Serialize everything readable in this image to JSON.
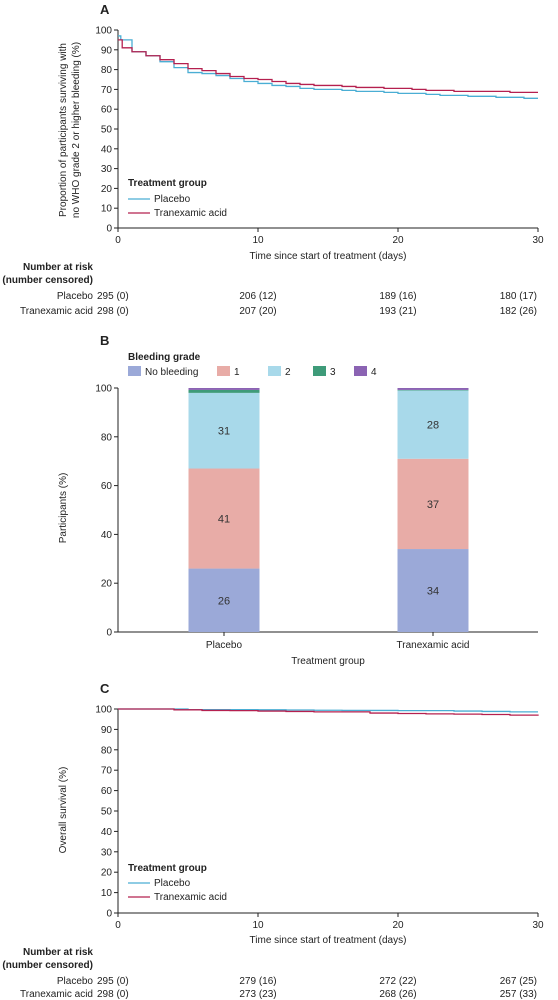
{
  "colors": {
    "placebo": "#4aaed4",
    "tranexamic": "#b5204f",
    "axis": "#222222",
    "no_bleeding": "#9ba9d8",
    "grade1": "#e8aca7",
    "grade2": "#a8d9ea",
    "grade3": "#3e9b79",
    "grade4": "#8b63b3"
  },
  "panel_a": {
    "letter": "A",
    "legend_title": "Treatment group",
    "risk_title_1": "Number at risk",
    "risk_title_2": "(number censored)",
    "risk_rows": [
      {
        "label": "Placebo",
        "values": [
          "295 (0)",
          "206 (12)",
          "189 (16)",
          "180 (17)"
        ]
      },
      {
        "label": "Tranexamic acid",
        "values": [
          "298 (0)",
          "207 (20)",
          "193 (21)",
          "182 (26)"
        ]
      }
    ]
  },
  "panel_b": {
    "letter": "B",
    "legend_title": "Bleeding grade"
  },
  "panel_c": {
    "letter": "C",
    "legend_title": "Treatment group",
    "risk_title_1": "Number at risk",
    "risk_title_2": "(number censored)",
    "risk_rows": [
      {
        "label": "Placebo",
        "values": [
          "295 (0)",
          "279 (16)",
          "272 (22)",
          "267 (25)"
        ]
      },
      {
        "label": "Tranexamic acid",
        "values": [
          "298 (0)",
          "273 (23)",
          "268 (26)",
          "257 (33)"
        ]
      }
    ]
  },
  "chart_data": [
    {
      "type": "line",
      "title": "",
      "xlabel": "Time since start of treatment (days)",
      "ylabel_lines": [
        "Proportion of participants surviving with",
        "no WHO grade 2 or higher bleeding (%)"
      ],
      "xlim": [
        0,
        30
      ],
      "ylim": [
        0,
        100
      ],
      "xticks": [
        0,
        10,
        20,
        30
      ],
      "yticks": [
        0,
        10,
        20,
        30,
        40,
        50,
        60,
        70,
        80,
        90,
        100
      ],
      "legend_position": "bottom-left",
      "series": [
        {
          "name": "Placebo",
          "x": [
            0,
            0.2,
            1,
            2,
            3,
            4,
            5,
            6,
            7,
            8,
            9,
            10,
            11,
            12,
            13,
            14,
            15,
            16,
            17,
            18,
            19,
            20,
            21,
            22,
            23,
            24,
            25,
            26,
            27,
            28,
            29,
            30
          ],
          "y": [
            97,
            95,
            89,
            87,
            84,
            81,
            78.5,
            78,
            77,
            75.5,
            74,
            73,
            72,
            71.5,
            70.5,
            70,
            70,
            69.5,
            69,
            69,
            68.5,
            68,
            68,
            67.5,
            67,
            67,
            66.5,
            66.5,
            66,
            66,
            65.5,
            65.5
          ]
        },
        {
          "name": "Tranexamic acid",
          "x": [
            0,
            0.3,
            1,
            2,
            3,
            4,
            5,
            6,
            7,
            8,
            9,
            10,
            11,
            12,
            13,
            14,
            15,
            16,
            17,
            18,
            19,
            20,
            21,
            22,
            23,
            24,
            25,
            26,
            27,
            28,
            29,
            30
          ],
          "y": [
            95,
            91,
            89,
            87,
            85,
            83,
            80.5,
            79.5,
            78,
            76.5,
            75.5,
            75,
            74,
            73,
            72.5,
            72,
            72,
            71.5,
            71,
            71,
            70.5,
            70.5,
            70,
            69.5,
            69.5,
            69,
            69,
            69,
            69,
            68.5,
            68.5,
            68.5
          ]
        }
      ]
    },
    {
      "type": "bar",
      "stacked": true,
      "title": "",
      "xlabel": "Treatment group",
      "ylabel": "Participants (%)",
      "ylim": [
        0,
        100
      ],
      "yticks": [
        0,
        20,
        40,
        60,
        80,
        100
      ],
      "categories": [
        "Placebo",
        "Tranexamic acid"
      ],
      "legend_position": "top-left",
      "series": [
        {
          "name": "No bleeding",
          "values": [
            26,
            34
          ],
          "labels": [
            "26",
            "34"
          ]
        },
        {
          "name": "1",
          "values": [
            41,
            37
          ],
          "labels": [
            "41",
            "37"
          ]
        },
        {
          "name": "2",
          "values": [
            31,
            28
          ],
          "labels": [
            "31",
            "28"
          ]
        },
        {
          "name": "3",
          "values": [
            1.2,
            0.2
          ],
          "labels": [
            "",
            ""
          ]
        },
        {
          "name": "4",
          "values": [
            0.8,
            0.8
          ],
          "labels": [
            "",
            ""
          ]
        }
      ]
    },
    {
      "type": "line",
      "title": "",
      "xlabel": "Time since start of treatment (days)",
      "ylabel": "Overall survival (%)",
      "xlim": [
        0,
        30
      ],
      "ylim": [
        0,
        100
      ],
      "xticks": [
        0,
        10,
        20,
        30
      ],
      "yticks": [
        0,
        10,
        20,
        30,
        40,
        50,
        60,
        70,
        80,
        90,
        100
      ],
      "legend_position": "bottom-left",
      "series": [
        {
          "name": "Placebo",
          "x": [
            0,
            3,
            5,
            8,
            10,
            12,
            14,
            16,
            18,
            20,
            22,
            24,
            26,
            28,
            30
          ],
          "y": [
            100,
            100,
            99.7,
            99.7,
            99.6,
            99.5,
            99.4,
            99.3,
            99.3,
            99.2,
            99.2,
            99,
            98.8,
            98.6,
            98.6
          ]
        },
        {
          "name": "Tranexamic acid",
          "x": [
            0,
            4,
            6,
            8,
            10,
            12,
            14,
            16,
            18,
            20,
            22,
            24,
            26,
            28,
            30
          ],
          "y": [
            100,
            99.6,
            99.3,
            99.2,
            99,
            98.8,
            98.6,
            98.6,
            98,
            97.8,
            97.6,
            97.5,
            97.3,
            97,
            96.7
          ]
        }
      ]
    }
  ]
}
